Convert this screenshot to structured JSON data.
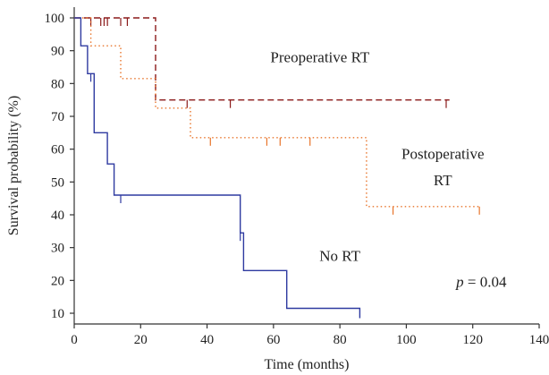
{
  "chart_data": {
    "type": "line",
    "subtype": "kaplan-meier-step",
    "title": "",
    "xlabel": "Time (months)",
    "ylabel": "Survival probability (%)",
    "xlim": [
      0,
      140
    ],
    "ylim": [
      10,
      100
    ],
    "x_ticks": [
      0,
      20,
      40,
      60,
      80,
      100,
      120,
      140
    ],
    "y_ticks": [
      10,
      20,
      30,
      40,
      50,
      60,
      70,
      80,
      90,
      100
    ],
    "grid": false,
    "legend": "none (series labelled inline)",
    "p_value": {
      "symbol": "p",
      "text": " = 0.04"
    },
    "series": [
      {
        "name": "Preoperative RT",
        "color": "#8b1a1a",
        "line_style": "dashed",
        "steps": [
          [
            0,
            100
          ],
          [
            24.5,
            100
          ],
          [
            24.5,
            75
          ],
          [
            113,
            75
          ]
        ],
        "censor_times": [
          5,
          8,
          9,
          10,
          14,
          16,
          34,
          47,
          112
        ]
      },
      {
        "name": "Postoperative\nRT",
        "color": "#e8742a",
        "line_style": "dotted",
        "steps": [
          [
            0,
            100
          ],
          [
            5,
            100
          ],
          [
            5,
            91.5
          ],
          [
            14,
            91.5
          ],
          [
            14,
            81.5
          ],
          [
            24.5,
            81.5
          ],
          [
            24.5,
            72.5
          ],
          [
            35,
            72.5
          ],
          [
            35,
            63.5
          ],
          [
            88,
            63.5
          ],
          [
            88,
            42.5
          ],
          [
            122,
            42.5
          ]
        ],
        "censor_times": [
          41,
          58,
          62,
          71,
          96,
          122
        ]
      },
      {
        "name": "No RT",
        "color": "#2e3aa0",
        "line_style": "solid",
        "steps": [
          [
            0,
            100
          ],
          [
            2,
            100
          ],
          [
            2,
            91.5
          ],
          [
            4,
            91.5
          ],
          [
            4,
            83
          ],
          [
            6,
            83
          ],
          [
            6,
            65
          ],
          [
            10,
            65
          ],
          [
            10,
            55.5
          ],
          [
            12,
            55.5
          ],
          [
            12,
            46
          ],
          [
            50,
            46
          ],
          [
            50,
            34.5
          ],
          [
            51,
            34.5
          ],
          [
            51,
            23
          ],
          [
            64,
            23
          ],
          [
            64,
            11.5
          ],
          [
            86,
            11.5
          ],
          [
            86,
            8.5
          ]
        ],
        "censor_times": [
          5,
          14,
          50
        ]
      }
    ],
    "series_label_positions_data": [
      {
        "series": 0,
        "x": 74,
        "y": 86.5
      },
      {
        "series": 1,
        "x": 111,
        "y": 57
      },
      {
        "series": 1,
        "x": 111,
        "y": 49
      },
      {
        "series": 2,
        "x": 80,
        "y": 26
      }
    ],
    "pval_position_data": {
      "x": 115,
      "y": 18
    }
  }
}
